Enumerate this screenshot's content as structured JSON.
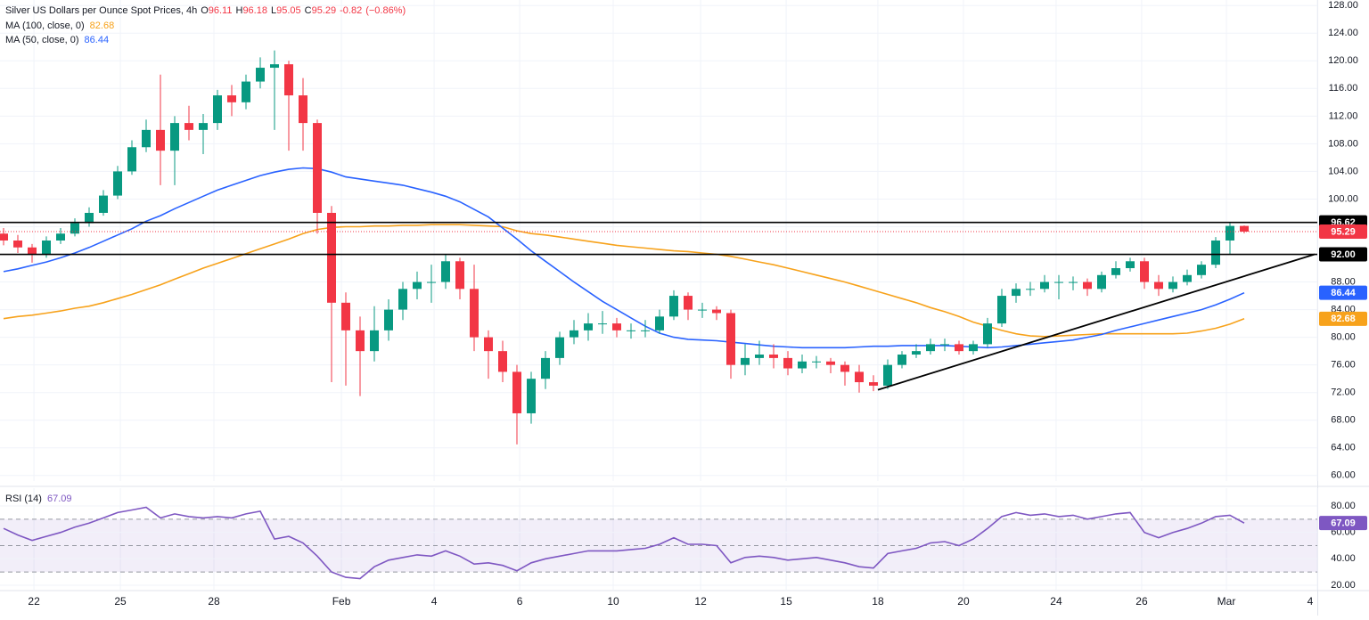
{
  "chart_data": [
    {
      "type": "candlestick",
      "title": "Silver US Dollars per Ounce Spot Prices, 4h",
      "ohlc_labels": [
        "O",
        "H",
        "L",
        "C"
      ],
      "change": -0.82,
      "change_pct": {
        "value": -0.86,
        "label": "(−0.86%)"
      },
      "up_color": "#089981",
      "down_color": "#f23645",
      "open": [
        95,
        94,
        93,
        92,
        94,
        95,
        96.5,
        98,
        100.5,
        104,
        107.5,
        110,
        107,
        111,
        110,
        111,
        115,
        114,
        117,
        119,
        119.5,
        115,
        111,
        98,
        85,
        81,
        78,
        81,
        84,
        87,
        88,
        88,
        91,
        87,
        80,
        78,
        75,
        69,
        74,
        77,
        80,
        81,
        82,
        82,
        81,
        81,
        81,
        83,
        86,
        84,
        84,
        83.5,
        76,
        77,
        77.5,
        77,
        75.5,
        76.5,
        76.5,
        76,
        75,
        73.5,
        73,
        76,
        77.5,
        78,
        79,
        79,
        78,
        79,
        82,
        86,
        87,
        87,
        88,
        88,
        88,
        87,
        89,
        90,
        91,
        88,
        87,
        88,
        89,
        90.5,
        94,
        96.11
      ],
      "high": [
        95.8,
        94.8,
        93.5,
        94.6,
        95.8,
        97.2,
        98.8,
        101.3,
        104.8,
        108.5,
        111.5,
        118,
        112,
        113.5,
        112.3,
        115.8,
        116.5,
        118,
        120.5,
        121.5,
        120,
        117.5,
        111.5,
        99,
        86.5,
        83,
        84.5,
        85.5,
        88,
        89.5,
        90.5,
        92,
        91.5,
        90.5,
        81,
        79.5,
        76,
        75,
        78,
        80.8,
        82.5,
        83.5,
        83.8,
        82.8,
        82,
        82.5,
        84,
        86.8,
        86.5,
        85,
        84.5,
        84,
        79,
        79.5,
        79,
        78,
        77.5,
        77.3,
        77,
        76.5,
        76,
        74.5,
        76.8,
        78,
        79,
        79.8,
        79.8,
        79.5,
        79.5,
        82.8,
        87,
        87.8,
        88,
        89,
        89,
        88.8,
        88.5,
        89.5,
        91,
        91.5,
        91.5,
        89,
        88.8,
        89.8,
        91,
        94.5,
        96.6,
        96.18
      ],
      "low": [
        93.3,
        92.2,
        90.8,
        91.5,
        93.5,
        94.6,
        96,
        97.6,
        100,
        103.5,
        106.8,
        102,
        102,
        108.5,
        106.5,
        110,
        112,
        113,
        116,
        110,
        107,
        107,
        95,
        73.5,
        73,
        71.5,
        76.5,
        79.5,
        82.5,
        85.5,
        85,
        87,
        85.5,
        78,
        74,
        73.5,
        64.5,
        67.5,
        72.5,
        76,
        79,
        79.5,
        80.5,
        80,
        79.8,
        80,
        80.5,
        82.5,
        82.5,
        82.8,
        82.5,
        74,
        74.5,
        76,
        75.5,
        74.5,
        74.8,
        75.5,
        74.8,
        73,
        72,
        72.2,
        72.5,
        75.5,
        77,
        77.5,
        78,
        77.5,
        77.5,
        78.5,
        81.5,
        85,
        86,
        86.5,
        85.5,
        86.8,
        86,
        86.5,
        88.5,
        89.5,
        87,
        86,
        86.5,
        87.5,
        88.5,
        90,
        92,
        95.05
      ],
      "close": [
        94,
        93,
        92,
        94,
        95,
        96.5,
        98,
        100.5,
        104,
        107.5,
        110,
        107,
        111,
        110,
        111,
        115,
        114,
        117,
        119,
        119.5,
        115,
        111,
        98,
        85,
        81,
        78,
        81,
        84,
        87,
        88,
        88,
        91,
        87,
        80,
        78,
        75,
        69,
        74,
        77,
        80,
        81,
        82,
        82,
        81,
        81,
        81,
        83,
        86,
        84,
        84,
        83.5,
        76,
        77,
        77.5,
        77,
        75.5,
        76.5,
        76.5,
        76,
        75,
        73.5,
        73,
        76,
        77.5,
        78,
        79,
        79,
        78,
        79,
        82,
        86,
        87,
        87,
        88,
        88,
        88,
        87,
        89,
        90,
        91,
        88,
        87,
        88,
        89,
        90.5,
        94,
        96.11,
        95.29
      ],
      "series": [
        {
          "name": "MA (100, close, 0)",
          "color": "#f7a21b",
          "values": [
            82.7,
            83,
            83.2,
            83.5,
            83.8,
            84.2,
            84.5,
            85,
            85.6,
            86.2,
            86.9,
            87.6,
            88.4,
            89.2,
            90,
            90.7,
            91.4,
            92.1,
            92.8,
            93.5,
            94.2,
            95,
            95.6,
            95.9,
            96,
            96,
            96.1,
            96.1,
            96.2,
            96.2,
            96.3,
            96.3,
            96.3,
            96.2,
            96.1,
            96,
            95.4,
            95,
            94.8,
            94.5,
            94.2,
            93.9,
            93.6,
            93.3,
            93.1,
            92.9,
            92.7,
            92.5,
            92.4,
            92.2,
            92,
            91.7,
            91.3,
            90.9,
            90.5,
            90,
            89.5,
            89,
            88.5,
            88,
            87.4,
            86.8,
            86.2,
            85.6,
            85,
            84.3,
            83.7,
            83,
            82.2,
            81.6,
            81,
            80.5,
            80.2,
            80.1,
            80.2,
            80.3,
            80.4,
            80.5,
            80.5,
            80.5,
            80.5,
            80.5,
            80.5,
            80.6,
            80.9,
            81.3,
            81.9,
            82.68
          ]
        },
        {
          "name": "MA (50, close, 0)",
          "color": "#2962ff",
          "values": [
            89.5,
            89.9,
            90.4,
            90.9,
            91.5,
            92.2,
            93,
            93.9,
            94.8,
            95.7,
            96.8,
            97.6,
            98.6,
            99.5,
            100.4,
            101.3,
            102,
            102.7,
            103.4,
            103.9,
            104.3,
            104.5,
            104.4,
            103.9,
            103.2,
            102.9,
            102.6,
            102.3,
            102,
            101.5,
            101,
            100.4,
            99.6,
            98.5,
            97.4,
            95.8,
            94.2,
            92.5,
            91,
            89.5,
            88,
            86.6,
            85.2,
            84,
            82.8,
            81.6,
            80.6,
            80,
            79.7,
            79.6,
            79.5,
            79.3,
            79.1,
            78.9,
            78.7,
            78.6,
            78.5,
            78.5,
            78.5,
            78.5,
            78.6,
            78.7,
            78.7,
            78.8,
            78.8,
            78.8,
            78.8,
            78.7,
            78.6,
            78.5,
            78.6,
            78.8,
            79,
            79.2,
            79.4,
            79.6,
            80,
            80.4,
            81,
            81.5,
            82,
            82.5,
            83,
            83.5,
            84,
            84.7,
            85.5,
            86.44
          ]
        }
      ],
      "levels": [
        {
          "value": 96.62,
          "label": "96.62"
        },
        {
          "value": 92,
          "label": "92.00"
        }
      ],
      "trendline": {
        "x": [
          61.31,
          91.94
        ],
        "y": [
          72.4,
          92
        ]
      },
      "last_price_line": true,
      "xlim": [
        -0.25,
        92.125
      ],
      "xticks": [
        {
          "value": 2.13,
          "label": "22"
        },
        {
          "value": 8.19,
          "label": "25"
        },
        {
          "value": 14.75,
          "label": "28"
        },
        {
          "value": 23.69,
          "label": "Feb"
        },
        {
          "value": 30.19,
          "label": "4"
        },
        {
          "value": 36.19,
          "label": "6"
        },
        {
          "value": 42.75,
          "label": "10"
        },
        {
          "value": 48.88,
          "label": "12"
        },
        {
          "value": 54.88,
          "label": "15"
        },
        {
          "value": 61.31,
          "label": "18"
        },
        {
          "value": 67.31,
          "label": "20"
        },
        {
          "value": 73.81,
          "label": "24"
        },
        {
          "value": 79.81,
          "label": "26"
        },
        {
          "value": 85.75,
          "label": "Mar"
        },
        {
          "value": 92.13,
          "label": "4"
        }
      ],
      "ylim": [
        59.2,
        128.8
      ],
      "yticks": [
        {
          "value": 60,
          "label": "60.00"
        },
        {
          "value": 64,
          "label": "64.00"
        },
        {
          "value": 68,
          "label": "68.00"
        },
        {
          "value": 72,
          "label": "72.00"
        },
        {
          "value": 76,
          "label": "76.00"
        },
        {
          "value": 80,
          "label": "80.00"
        },
        {
          "value": 84,
          "label": "84.00"
        },
        {
          "value": 88,
          "label": "88.00"
        },
        {
          "value": 92,
          "label": "92.00"
        },
        {
          "value": 96,
          "label": "96.00"
        },
        {
          "value": 100,
          "label": "100.00"
        },
        {
          "value": 104,
          "label": "104.00"
        },
        {
          "value": 108,
          "label": "108.00"
        },
        {
          "value": 112,
          "label": "112.00"
        },
        {
          "value": 116,
          "label": "116.00"
        },
        {
          "value": 120,
          "label": "120.00"
        },
        {
          "value": 124,
          "label": "124.00"
        },
        {
          "value": 128,
          "label": "128.00"
        }
      ],
      "grid": true
    },
    {
      "type": "line",
      "series": [
        {
          "name": "RSI (14)",
          "color": "#7e57c2",
          "values": [
            63,
            58,
            54,
            57,
            60,
            64,
            67,
            71,
            75,
            77,
            79,
            71,
            74,
            72,
            71,
            72,
            71,
            74,
            76,
            55,
            57,
            52,
            42,
            30,
            26,
            25,
            34,
            39,
            41,
            43,
            42,
            46,
            42,
            36,
            37,
            35,
            31,
            37,
            40,
            42,
            44,
            46,
            46,
            46,
            47,
            48,
            51,
            56,
            51,
            51,
            50,
            37,
            41,
            42,
            41,
            39,
            40,
            41,
            39,
            37,
            34,
            33,
            44,
            46,
            48,
            52,
            53,
            50,
            55,
            63,
            72,
            75,
            73,
            74,
            72,
            73,
            70,
            72,
            74,
            75,
            60,
            56,
            60,
            63,
            67,
            72,
            73,
            67.09
          ]
        }
      ],
      "band": [
        30,
        70
      ],
      "levels": [
        30,
        50,
        70
      ],
      "ylim": [
        16.6,
        93.5
      ],
      "yticks": [
        {
          "value": 20,
          "label": "20.00"
        },
        {
          "value": 40,
          "label": "40.00"
        },
        {
          "value": 60,
          "label": "60.00"
        },
        {
          "value": 80,
          "label": "80.00"
        }
      ],
      "grid": true
    }
  ]
}
